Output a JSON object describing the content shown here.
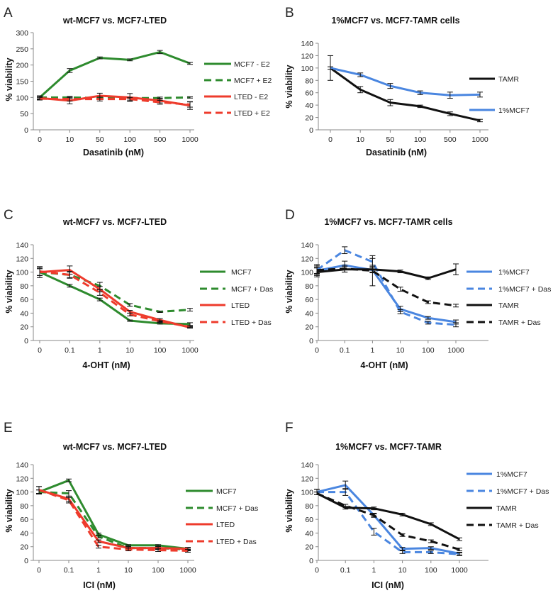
{
  "colors": {
    "green": "#2e8b2e",
    "red": "#ee3b2c",
    "blue": "#4a86e0",
    "black": "#111111",
    "axis": "#888888"
  },
  "chart_data": [
    {
      "panel": "A",
      "type": "line",
      "title": "wt-MCF7 vs. MCF7-LTED",
      "xlabel": "Dasatinib (nM)",
      "ylabel": "% viability",
      "categories": [
        "0",
        "10",
        "50",
        "100",
        "500",
        "1000"
      ],
      "ylim": [
        0,
        300
      ],
      "yticks": [
        0,
        50,
        100,
        150,
        200,
        250,
        300
      ],
      "series": [
        {
          "name": "MCF7 - E2",
          "color": "#2e8b2e",
          "dashed": false,
          "values": [
            100,
            183,
            222,
            216,
            240,
            205
          ],
          "errors": [
            5,
            6,
            3,
            3,
            5,
            3
          ]
        },
        {
          "name": "MCF7 + E2",
          "color": "#2e8b2e",
          "dashed": true,
          "values": [
            100,
            100,
            98,
            98,
            98,
            100
          ],
          "errors": [
            4,
            3,
            3,
            3,
            3,
            2
          ]
        },
        {
          "name": "LTED - E2",
          "color": "#ee3b2c",
          "dashed": false,
          "values": [
            98,
            90,
            105,
            100,
            90,
            75
          ],
          "errors": [
            5,
            10,
            8,
            12,
            7,
            12
          ]
        },
        {
          "name": "LTED + E2",
          "color": "#ee3b2c",
          "dashed": true,
          "values": [
            96,
            95,
            95,
            95,
            85,
            78
          ],
          "errors": [
            4,
            6,
            6,
            5,
            6,
            8
          ]
        }
      ]
    },
    {
      "panel": "B",
      "type": "line",
      "title": "1%MCF7 vs. MCF7-TAMR cells",
      "xlabel": "Dasatinib (nM)",
      "ylabel": "% viability",
      "categories": [
        "0",
        "10",
        "50",
        "100",
        "500",
        "1000"
      ],
      "ylim": [
        0,
        140
      ],
      "yticks": [
        0,
        20,
        40,
        60,
        80,
        100,
        120,
        140
      ],
      "series": [
        {
          "name": "TAMR",
          "color": "#111111",
          "dashed": false,
          "values": [
            100,
            65,
            44,
            38,
            26,
            15
          ],
          "errors": [
            20,
            5,
            5,
            2,
            3,
            2
          ]
        },
        {
          "name": "1%MCF7",
          "color": "#4a86e0",
          "dashed": false,
          "values": [
            100,
            89,
            71,
            60,
            56,
            57
          ],
          "errors": [
            2,
            3,
            4,
            3,
            5,
            4
          ]
        }
      ]
    },
    {
      "panel": "C",
      "type": "line",
      "title": "wt-MCF7 vs. MCF7-LTED",
      "xlabel": "4-OHT (nM)",
      "ylabel": "% viability",
      "categories": [
        "0",
        "0.1",
        "1",
        "10",
        "100",
        "1000"
      ],
      "ylim": [
        0,
        140
      ],
      "yticks": [
        0,
        20,
        40,
        60,
        80,
        100,
        120,
        140
      ],
      "series": [
        {
          "name": "MCF7",
          "color": "#2e8b2e",
          "dashed": false,
          "values": [
            100,
            80,
            60,
            29,
            25,
            24
          ],
          "errors": [
            5,
            2,
            2,
            1,
            1,
            2
          ]
        },
        {
          "name": "MCF7 + Das",
          "color": "#2e8b2e",
          "dashed": true,
          "values": [
            100,
            96,
            80,
            52,
            42,
            45
          ],
          "errors": [
            5,
            4,
            5,
            2,
            1,
            2
          ]
        },
        {
          "name": "LTED",
          "color": "#ee3b2c",
          "dashed": false,
          "values": [
            100,
            103,
            75,
            42,
            30,
            19
          ],
          "errors": [
            8,
            6,
            4,
            2,
            2,
            1
          ]
        },
        {
          "name": "LTED + Das",
          "color": "#ee3b2c",
          "dashed": true,
          "values": [
            101,
            96,
            70,
            38,
            28,
            20
          ],
          "errors": [
            6,
            5,
            4,
            2,
            1,
            1
          ]
        }
      ]
    },
    {
      "panel": "D",
      "type": "line",
      "title": "1%MCF7 vs. MCF7-TAMR cells",
      "xlabel": "4-OHT (nM)",
      "ylabel": "% viability",
      "categories": [
        "0",
        "0.1",
        "1",
        "10",
        "100",
        "1000"
      ],
      "ylim": [
        0,
        140
      ],
      "yticks": [
        0,
        20,
        40,
        60,
        80,
        100,
        120,
        140
      ],
      "series": [
        {
          "name": "1%MCF7",
          "color": "#4a86e0",
          "dashed": false,
          "values": [
            102,
            110,
            103,
            46,
            33,
            27
          ],
          "errors": [
            4,
            6,
            4,
            4,
            2,
            3
          ]
        },
        {
          "name": "1%MCF7 + Das",
          "color": "#4a86e0",
          "dashed": true,
          "values": [
            103,
            132,
            115,
            42,
            26,
            23
          ],
          "errors": [
            6,
            5,
            5,
            3,
            2,
            3
          ]
        },
        {
          "name": "TAMR",
          "color": "#111111",
          "dashed": false,
          "values": [
            100,
            104,
            104,
            101,
            91,
            104
          ],
          "errors": [
            7,
            4,
            4,
            2,
            2,
            8
          ]
        },
        {
          "name": "TAMR + Das",
          "color": "#111111",
          "dashed": true,
          "values": [
            103,
            105,
            102,
            75,
            56,
            51
          ],
          "errors": [
            8,
            5,
            22,
            3,
            2,
            2
          ]
        }
      ]
    },
    {
      "panel": "E",
      "type": "line",
      "title": "wt-MCF7 vs. MCF7-LTED",
      "xlabel": "ICI (nM)",
      "ylabel": "% viability",
      "categories": [
        "0",
        "0.1",
        "1",
        "10",
        "100",
        "1000"
      ],
      "ylim": [
        0,
        140
      ],
      "yticks": [
        0,
        20,
        40,
        60,
        80,
        100,
        120,
        140
      ],
      "series": [
        {
          "name": "MCF7",
          "color": "#2e8b2e",
          "dashed": false,
          "values": [
            100,
            117,
            38,
            22,
            22,
            17
          ],
          "errors": [
            3,
            2,
            2,
            1,
            1,
            1
          ]
        },
        {
          "name": "MCF7 + Das",
          "color": "#2e8b2e",
          "dashed": true,
          "values": [
            100,
            98,
            35,
            18,
            18,
            16
          ],
          "errors": [
            3,
            4,
            2,
            2,
            2,
            2
          ]
        },
        {
          "name": "LTED",
          "color": "#ee3b2c",
          "dashed": false,
          "values": [
            103,
            90,
            28,
            18,
            18,
            17
          ],
          "errors": [
            5,
            4,
            2,
            2,
            2,
            2
          ]
        },
        {
          "name": "LTED + Das",
          "color": "#ee3b2c",
          "dashed": true,
          "values": [
            103,
            88,
            20,
            16,
            15,
            14
          ],
          "errors": [
            5,
            4,
            2,
            2,
            2,
            2
          ]
        }
      ]
    },
    {
      "panel": "F",
      "type": "line",
      "title": "1%MCF7 vs. MCF7-TAMR",
      "xlabel": "ICI (nM)",
      "ylabel": "% viability",
      "categories": [
        "0",
        "0.1",
        "1",
        "10",
        "100",
        "1000"
      ],
      "ylim": [
        0,
        140
      ],
      "yticks": [
        0,
        20,
        40,
        60,
        80,
        100,
        120,
        140
      ],
      "series": [
        {
          "name": "1%MCF7",
          "color": "#4a86e0",
          "dashed": false,
          "values": [
            100,
            110,
            66,
            17,
            18,
            10
          ],
          "errors": [
            4,
            6,
            3,
            2,
            2,
            2
          ]
        },
        {
          "name": "1%MCF7 + Das",
          "color": "#4a86e0",
          "dashed": true,
          "values": [
            100,
            100,
            42,
            12,
            12,
            9
          ],
          "errors": [
            4,
            5,
            5,
            2,
            2,
            2
          ]
        },
        {
          "name": "TAMR",
          "color": "#111111",
          "dashed": false,
          "values": [
            98,
            77,
            76,
            67,
            53,
            31
          ],
          "errors": [
            2,
            2,
            2,
            2,
            2,
            2
          ]
        },
        {
          "name": "TAMR + Das",
          "color": "#111111",
          "dashed": true,
          "values": [
            98,
            80,
            66,
            37,
            28,
            16
          ],
          "errors": [
            2,
            2,
            2,
            2,
            2,
            2
          ]
        }
      ]
    }
  ]
}
